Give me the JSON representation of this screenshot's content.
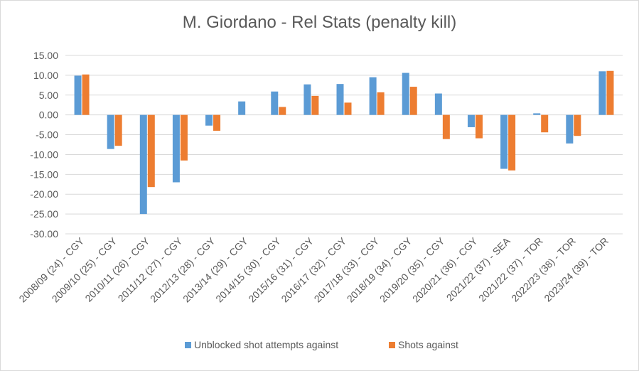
{
  "chart_data": {
    "type": "bar",
    "title": "M. Giordano - Rel Stats (penalty kill)",
    "xlabel": "",
    "ylabel": "",
    "ylim": [
      -30,
      15
    ],
    "ytick_step": 5,
    "ytick_labels": [
      "15.00",
      "10.00",
      "5.00",
      "0.00",
      "-5.00",
      "-10.00",
      "-15.00",
      "-20.00",
      "-25.00",
      "-30.00"
    ],
    "grid": true,
    "legend_position": "bottom",
    "categories": [
      "2008/09 (24) - CGY",
      "2009/10 (25) - CGY",
      "2010/11 (26) - CGY",
      "2011/12 (27) - CGY",
      "2012/13 (28) - CGY",
      "2013/14 (29) - CGY",
      "2014/15 (30) - CGY",
      "2015/16 (31) - CGY",
      "2016/17 (32) - CGY",
      "2017/18 (33) - CGY",
      "2018/19 (34) - CGY",
      "2019/20 (35) - CGY",
      "2020/21 (36) - CGY",
      "2021/22 (37) - SEA",
      "2021/22 (37) - TOR",
      "2022/23 (38) - TOR",
      "2023/24 (39) - TOR"
    ],
    "series": [
      {
        "name": "Unblocked shot attempts against",
        "color": "#5b9bd5",
        "values": [
          9.9,
          -8.6,
          -25.0,
          -17.0,
          -2.7,
          3.4,
          5.9,
          7.7,
          7.8,
          9.5,
          10.6,
          5.4,
          -3.1,
          -13.6,
          0.4,
          -7.2,
          11.0
        ]
      },
      {
        "name": "Shots against",
        "color": "#ed7d31",
        "values": [
          10.2,
          -7.8,
          -18.2,
          -11.5,
          -4.0,
          0.0,
          2.0,
          4.8,
          3.1,
          5.7,
          7.1,
          -6.1,
          -5.9,
          -14.0,
          -4.4,
          -5.3,
          11.1
        ]
      }
    ]
  }
}
